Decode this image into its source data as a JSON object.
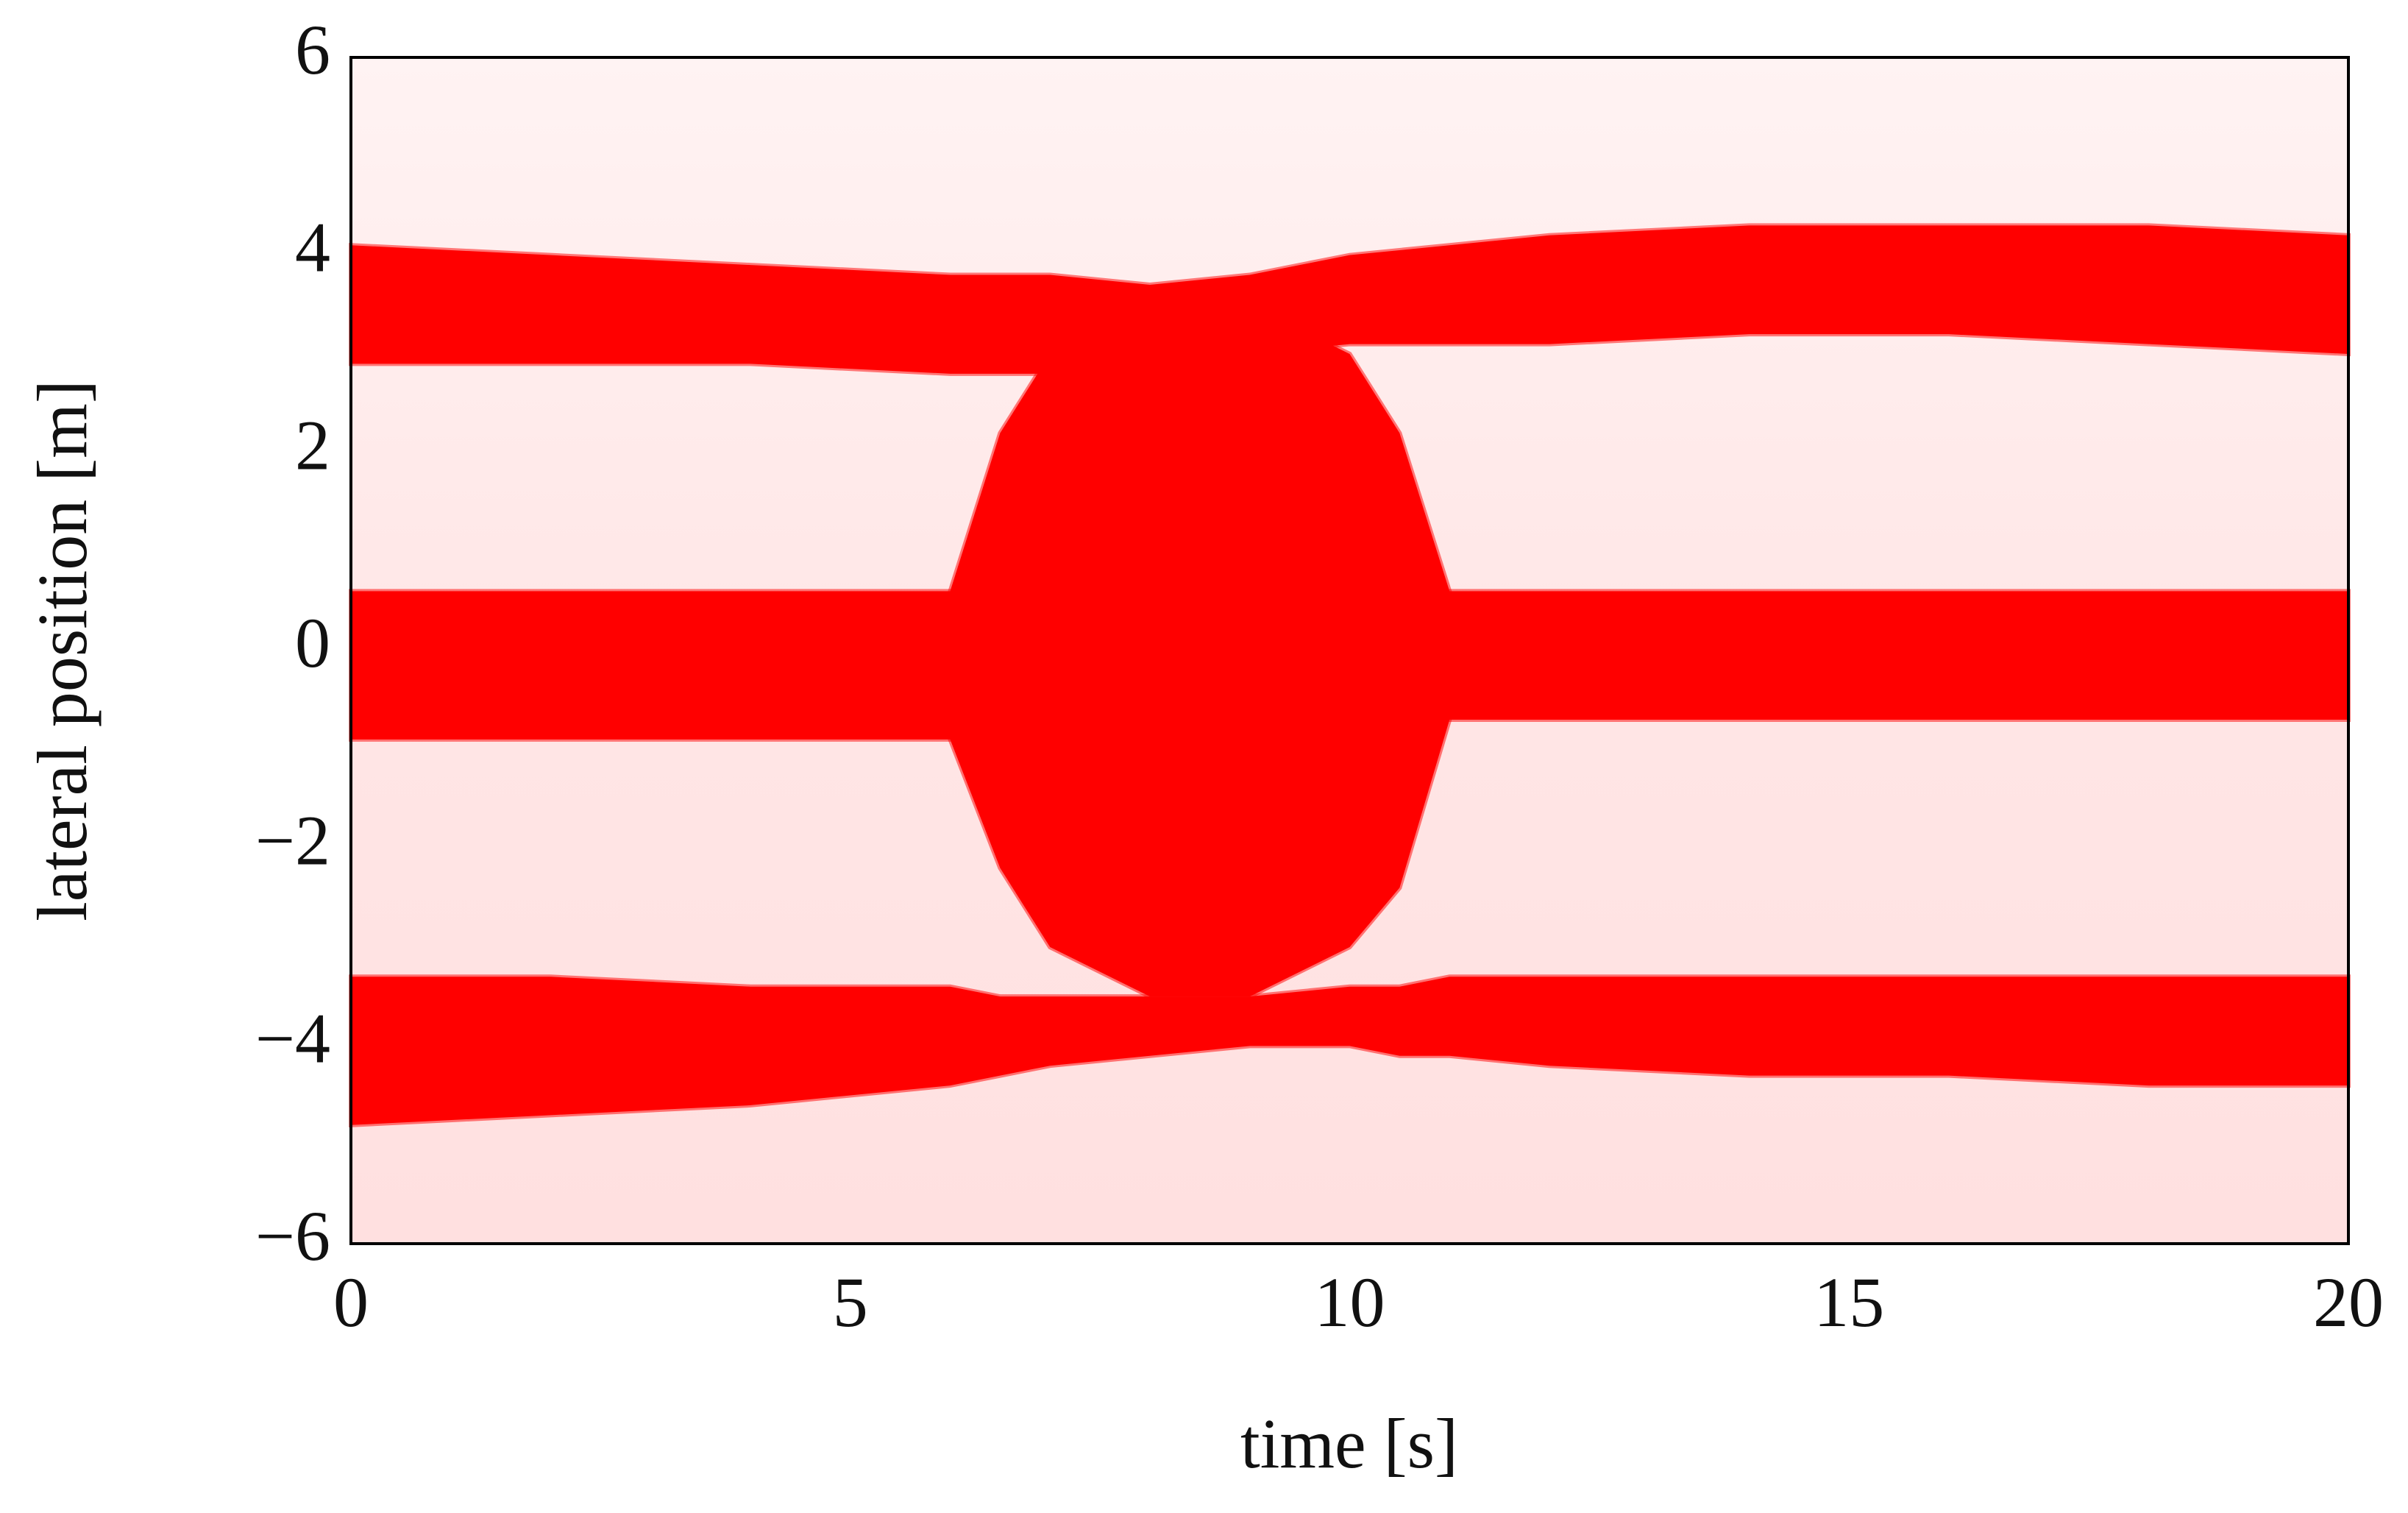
{
  "chart_data": {
    "type": "band",
    "x_label": "time [s]",
    "y_label": "lateral position [m]",
    "x": [
      0,
      2,
      4,
      6,
      6.5,
      7,
      8,
      9,
      10,
      10.5,
      11,
      12,
      14,
      16,
      18,
      20
    ],
    "series": [
      {
        "color": "#ff0000",
        "values": [
          4.1,
          4.0,
          3.9,
          3.8,
          3.8,
          3.8,
          3.7,
          3.8,
          4.0,
          4.05,
          4.1,
          4.2,
          4.3,
          4.3,
          4.3,
          4.2
        ],
        "lower": [
          2.9,
          2.9,
          2.9,
          2.8,
          2.8,
          2.8,
          2.9,
          3.0,
          3.1,
          3.1,
          3.1,
          3.1,
          3.2,
          3.2,
          3.1,
          3.0
        ]
      },
      {
        "color": "#ff0000",
        "values": [
          0.6,
          0.6,
          0.6,
          0.6,
          0.6,
          0.6,
          0.6,
          0.6,
          0.6,
          0.6,
          0.6,
          0.6,
          0.6,
          0.6,
          0.6,
          0.6
        ],
        "lower": [
          -0.9,
          -0.9,
          -0.9,
          -0.9,
          -0.9,
          -0.9,
          -0.8,
          -0.8,
          -0.7,
          -0.7,
          -0.7,
          -0.7,
          -0.7,
          -0.7,
          -0.7,
          -0.7
        ]
      },
      {
        "color": "#ff0000",
        "values": [
          -3.3,
          -3.3,
          -3.4,
          -3.4,
          -3.5,
          -3.5,
          -3.5,
          -3.5,
          -3.4,
          -3.4,
          -3.3,
          -3.3,
          -3.3,
          -3.3,
          -3.3,
          -3.3
        ],
        "lower": [
          -4.8,
          -4.7,
          -4.6,
          -4.4,
          -4.3,
          -4.2,
          -4.1,
          -4.0,
          -4.0,
          -4.1,
          -4.1,
          -4.2,
          -4.3,
          -4.3,
          -4.4,
          -4.4
        ]
      },
      {
        "color": "#ff0000",
        "values": [
          null,
          null,
          null,
          0.6,
          2.2,
          3.0,
          3.5,
          3.5,
          3.0,
          2.2,
          0.6,
          null,
          null,
          null,
          null,
          null
        ],
        "lower": [
          null,
          null,
          null,
          -0.9,
          -2.2,
          -3.0,
          -3.5,
          -3.5,
          -3.0,
          -2.4,
          -0.7,
          null,
          null,
          null,
          null,
          null
        ]
      }
    ],
    "xlim": [
      0,
      20
    ],
    "xticks": [
      0,
      5,
      10,
      15,
      20
    ],
    "ylim": [
      -6,
      6
    ],
    "yticks": [
      {
        "value": -6,
        "label": "−6"
      },
      {
        "value": -4,
        "label": "−4"
      },
      {
        "value": -2,
        "label": "−2"
      },
      0,
      2,
      4,
      6
    ],
    "grid": false
  }
}
